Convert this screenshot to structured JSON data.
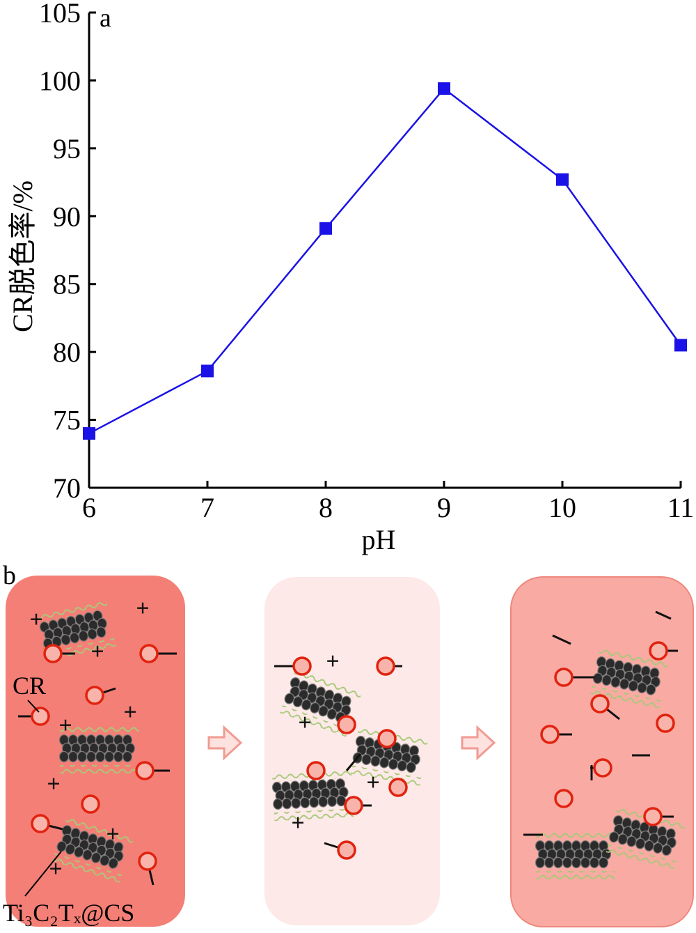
{
  "chart_data": {
    "type": "line",
    "panel_label": "a",
    "xlabel": "pH",
    "ylabel": "CR脱色率/%",
    "x": [
      6,
      7,
      8,
      9,
      10,
      11
    ],
    "series": [
      {
        "values": [
          74.0,
          78.6,
          89.1,
          99.4,
          92.7,
          80.5
        ],
        "color": "#1a12e6"
      }
    ],
    "xlim": [
      6,
      11
    ],
    "ylim": [
      70,
      105
    ],
    "xticks": [
      "6",
      "7",
      "8",
      "9",
      "10",
      "11"
    ],
    "yticks": [
      "70",
      "75",
      "80",
      "85",
      "90",
      "95",
      "100",
      "105"
    ],
    "marker": "square",
    "grid": false
  },
  "schematic": {
    "panel_label": "b",
    "label_cr": "CR",
    "label_composite": "Ti₃C₂Tₓ@CS",
    "plus": "+",
    "colors": {
      "box1": "#f47f76",
      "box2": "#fde9e7",
      "box3": "#f9aaa3",
      "dye_ring": "#e1220f",
      "dye_fill": "#f8b4aa",
      "sheet": "#2b2b2b",
      "chitosan": "#a7c97a",
      "arrow": "#f7b3ab"
    }
  }
}
